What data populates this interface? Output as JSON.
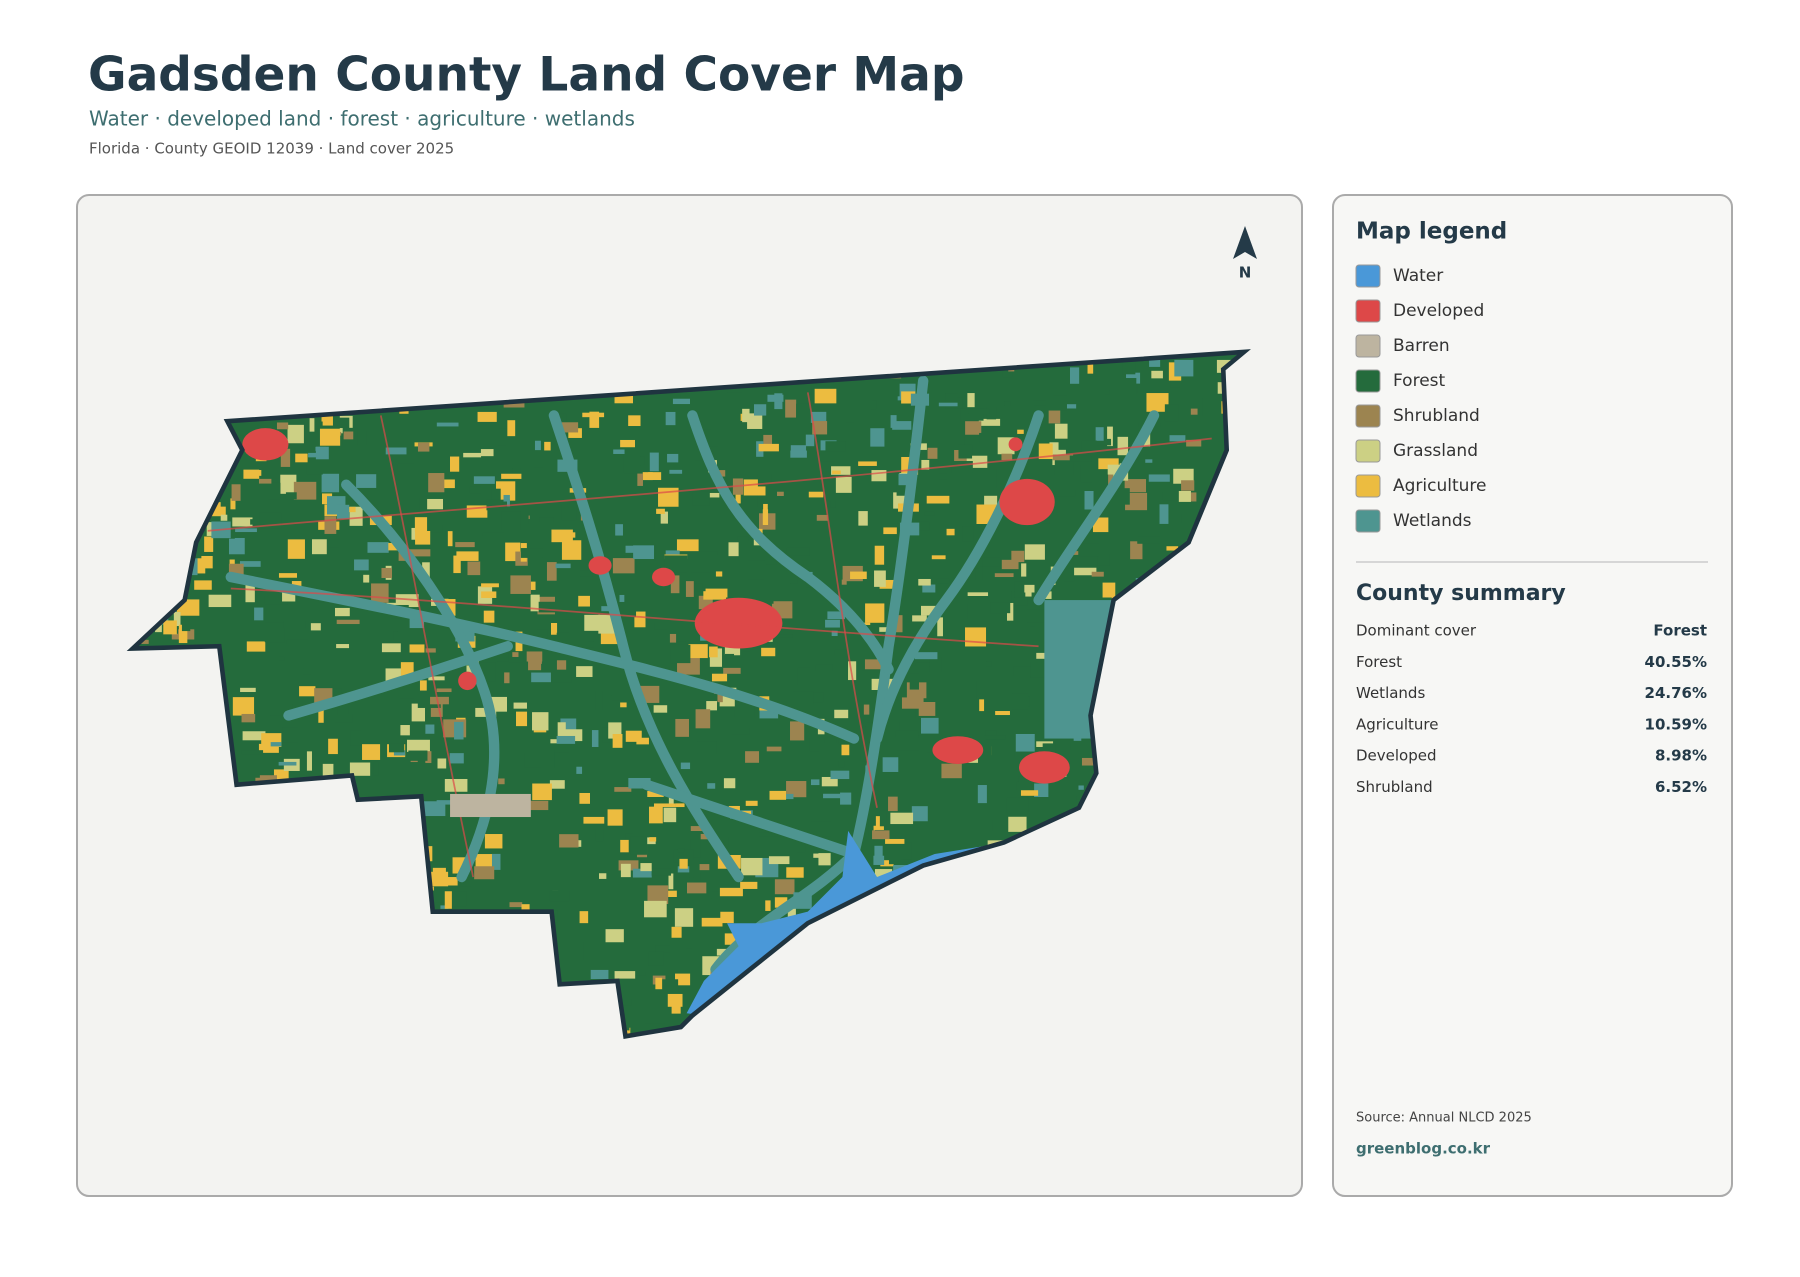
{
  "header": {
    "title": "Gadsden County Land Cover Map",
    "subtitle": "Water · developed land · forest · agriculture · wetlands",
    "meta": "Florida · County GEOID 12039 · Land cover 2025"
  },
  "map": {
    "north_label": "N"
  },
  "legend": {
    "title": "Map legend",
    "items": [
      {
        "label": "Water",
        "color": "#4a98d8"
      },
      {
        "label": "Developed",
        "color": "#dd4848"
      },
      {
        "label": "Barren",
        "color": "#bdb4a0"
      },
      {
        "label": "Forest",
        "color": "#246b3c"
      },
      {
        "label": "Shrubland",
        "color": "#9c8450"
      },
      {
        "label": "Grassland",
        "color": "#ccd084"
      },
      {
        "label": "Agriculture",
        "color": "#ecbc40"
      },
      {
        "label": "Wetlands",
        "color": "#4e9590"
      }
    ]
  },
  "summary": {
    "title": "County summary",
    "rows": [
      [
        "Dominant cover",
        "Forest"
      ],
      [
        "Forest",
        "40.55%"
      ],
      [
        "Wetlands",
        "24.76%"
      ],
      [
        "Agriculture",
        "10.59%"
      ],
      [
        "Developed",
        "8.98%"
      ],
      [
        "Shrubland",
        "6.52%"
      ]
    ]
  },
  "footer": {
    "source": "Source: Annual NLCD 2025",
    "site": "greenblog.co.kr"
  }
}
